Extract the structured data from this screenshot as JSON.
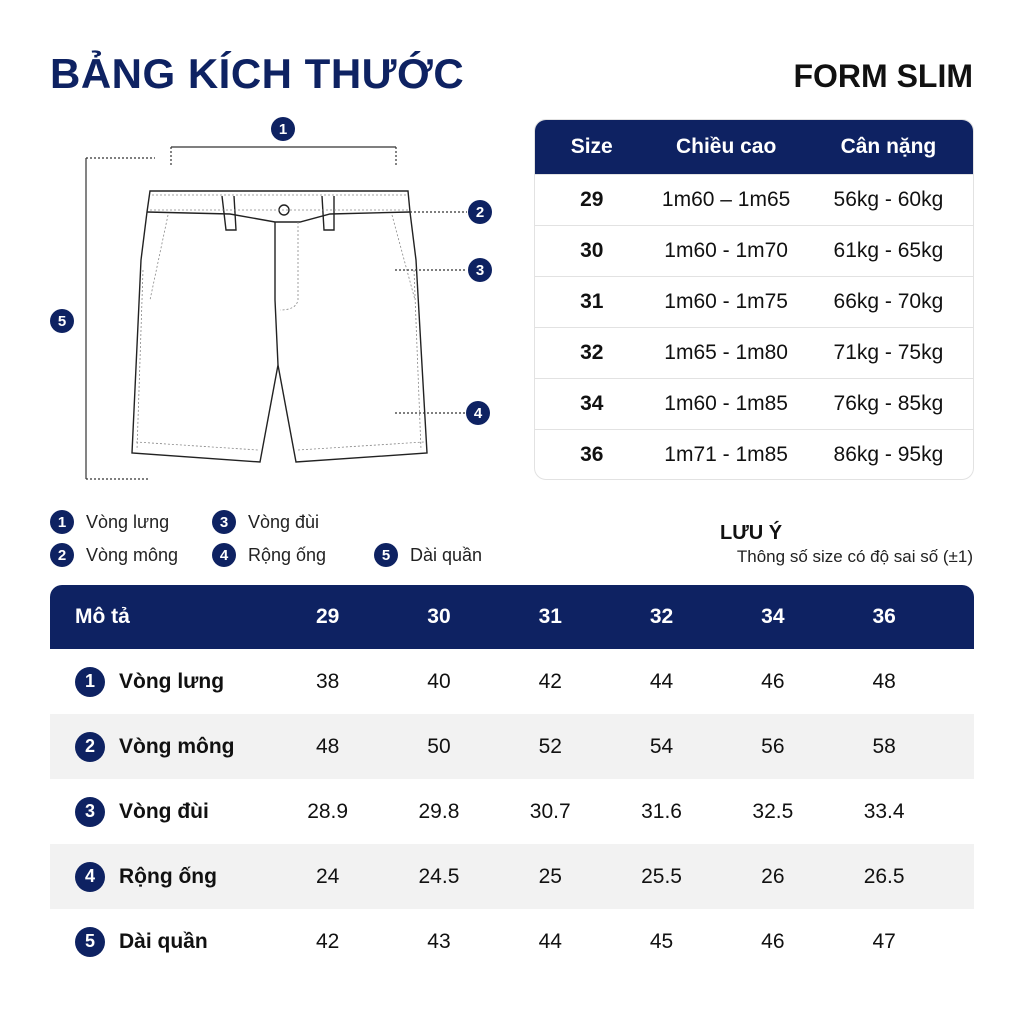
{
  "title": "BẢNG KÍCH THƯỚC",
  "form": "FORM SLIM",
  "size_table": {
    "headers": [
      "Size",
      "Chiều cao",
      "Cân nặng"
    ],
    "rows": [
      [
        "29",
        "1m60 – 1m65",
        "56kg - 60kg"
      ],
      [
        "30",
        "1m60 - 1m70",
        "61kg - 65kg"
      ],
      [
        "31",
        "1m60 - 1m75",
        "66kg - 70kg"
      ],
      [
        "32",
        "1m65 - 1m80",
        "71kg - 75kg"
      ],
      [
        "34",
        "1m60 - 1m85",
        "76kg - 85kg"
      ],
      [
        "36",
        "1m71 - 1m85",
        "86kg - 95kg"
      ]
    ]
  },
  "diagram_markers": [
    "1",
    "2",
    "3",
    "4",
    "5"
  ],
  "legend": [
    {
      "n": "1",
      "label": "Vòng lưng"
    },
    {
      "n": "2",
      "label": "Vòng mông"
    },
    {
      "n": "3",
      "label": "Vòng đùi"
    },
    {
      "n": "4",
      "label": "Rộng ống"
    },
    {
      "n": "5",
      "label": "Dài quần"
    }
  ],
  "note": {
    "title": "LƯU Ý",
    "text": "Thông số size có độ sai số (±1)"
  },
  "measure_table": {
    "headers": [
      "Mô tả",
      "29",
      "30",
      "31",
      "32",
      "34",
      "36"
    ],
    "rows": [
      {
        "n": "1",
        "label": "Vòng lưng",
        "values": [
          "38",
          "40",
          "42",
          "44",
          "46",
          "48"
        ]
      },
      {
        "n": "2",
        "label": "Vòng mông",
        "values": [
          "48",
          "50",
          "52",
          "54",
          "56",
          "58"
        ]
      },
      {
        "n": "3",
        "label": "Vòng đùi",
        "values": [
          "28.9",
          "29.8",
          "30.7",
          "31.6",
          "32.5",
          "33.4"
        ]
      },
      {
        "n": "4",
        "label": "Rộng ống",
        "values": [
          "24",
          "24.5",
          "25",
          "25.5",
          "26",
          "26.5"
        ]
      },
      {
        "n": "5",
        "label": "Dài quần",
        "values": [
          "42",
          "43",
          "44",
          "45",
          "46",
          "47"
        ]
      }
    ]
  },
  "colors": {
    "navy": "#0e2262",
    "stripe": "#f2f2f2"
  }
}
